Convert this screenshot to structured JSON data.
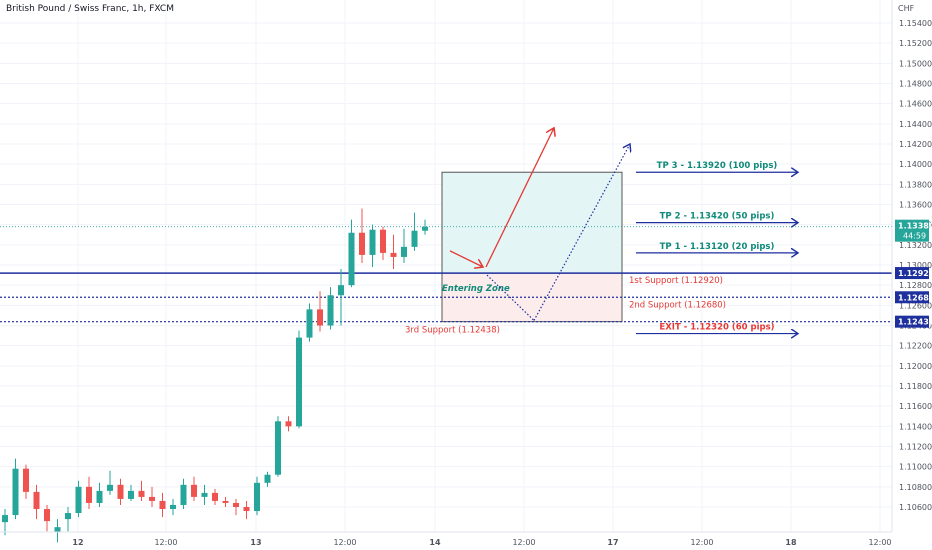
{
  "chart_data": {
    "type": "candlestick",
    "title": "British Pound / Swiss Franc, 1h, FXCM",
    "currency": "CHF",
    "ylim": [
      1.103,
      1.1555
    ],
    "y_ticks": [
      "1.15400",
      "1.15200",
      "1.15000",
      "1.14800",
      "1.14600",
      "1.14400",
      "1.14200",
      "1.14000",
      "1.13800",
      "1.13600",
      "1.13400",
      "1.13200",
      "1.13000",
      "1.12800",
      "1.12600",
      "1.12400",
      "1.12200",
      "1.12000",
      "1.11800",
      "1.11600",
      "1.11400",
      "1.11200",
      "1.11000",
      "1.10800",
      "1.10600"
    ],
    "x_ticks": [
      "12",
      "12:00",
      "13",
      "12:00",
      "14",
      "12:00",
      "17",
      "12:00",
      "18",
      "12:00"
    ],
    "grid": true,
    "candles": [
      {
        "o": 1.1045,
        "h": 1.1058,
        "l": 1.1032,
        "c": 1.1052
      },
      {
        "o": 1.1052,
        "h": 1.1108,
        "l": 1.1048,
        "c": 1.1098
      },
      {
        "o": 1.1098,
        "h": 1.1102,
        "l": 1.1068,
        "c": 1.1075
      },
      {
        "o": 1.1075,
        "h": 1.1082,
        "l": 1.1048,
        "c": 1.1058
      },
      {
        "o": 1.1058,
        "h": 1.1062,
        "l": 1.1036,
        "c": 1.1046
      },
      {
        "o": 1.1035,
        "h": 1.1048,
        "l": 1.1025,
        "c": 1.104
      },
      {
        "o": 1.1048,
        "h": 1.106,
        "l": 1.1036,
        "c": 1.1054
      },
      {
        "o": 1.1054,
        "h": 1.1086,
        "l": 1.105,
        "c": 1.108
      },
      {
        "o": 1.108,
        "h": 1.109,
        "l": 1.1058,
        "c": 1.1064
      },
      {
        "o": 1.1064,
        "h": 1.1084,
        "l": 1.106,
        "c": 1.1076
      },
      {
        "o": 1.1076,
        "h": 1.1096,
        "l": 1.1072,
        "c": 1.1082
      },
      {
        "o": 1.1082,
        "h": 1.1088,
        "l": 1.1062,
        "c": 1.1068
      },
      {
        "o": 1.1068,
        "h": 1.1082,
        "l": 1.1066,
        "c": 1.1076
      },
      {
        "o": 1.1076,
        "h": 1.1086,
        "l": 1.1066,
        "c": 1.107
      },
      {
        "o": 1.107,
        "h": 1.108,
        "l": 1.106,
        "c": 1.1066
      },
      {
        "o": 1.1066,
        "h": 1.1074,
        "l": 1.105,
        "c": 1.1058
      },
      {
        "o": 1.1058,
        "h": 1.1068,
        "l": 1.1052,
        "c": 1.1062
      },
      {
        "o": 1.1062,
        "h": 1.1088,
        "l": 1.1058,
        "c": 1.1082
      },
      {
        "o": 1.1082,
        "h": 1.109,
        "l": 1.1066,
        "c": 1.107
      },
      {
        "o": 1.107,
        "h": 1.1082,
        "l": 1.1062,
        "c": 1.1074
      },
      {
        "o": 1.1074,
        "h": 1.1078,
        "l": 1.1062,
        "c": 1.1066
      },
      {
        "o": 1.1066,
        "h": 1.107,
        "l": 1.106,
        "c": 1.1064
      },
      {
        "o": 1.1064,
        "h": 1.1068,
        "l": 1.1052,
        "c": 1.106
      },
      {
        "o": 1.106,
        "h": 1.1066,
        "l": 1.1048,
        "c": 1.1056
      },
      {
        "o": 1.1056,
        "h": 1.109,
        "l": 1.1052,
        "c": 1.1084
      },
      {
        "o": 1.1084,
        "h": 1.1095,
        "l": 1.108,
        "c": 1.1092
      },
      {
        "o": 1.1092,
        "h": 1.115,
        "l": 1.109,
        "c": 1.1145
      },
      {
        "o": 1.1145,
        "h": 1.115,
        "l": 1.1135,
        "c": 1.114
      },
      {
        "o": 1.114,
        "h": 1.1235,
        "l": 1.1138,
        "c": 1.1228
      },
      {
        "o": 1.1228,
        "h": 1.1262,
        "l": 1.1224,
        "c": 1.1256
      },
      {
        "o": 1.1256,
        "h": 1.1274,
        "l": 1.1234,
        "c": 1.124
      },
      {
        "o": 1.124,
        "h": 1.1278,
        "l": 1.1236,
        "c": 1.127
      },
      {
        "o": 1.127,
        "h": 1.1296,
        "l": 1.124,
        "c": 1.128
      },
      {
        "o": 1.128,
        "h": 1.1345,
        "l": 1.1278,
        "c": 1.1332
      },
      {
        "o": 1.1332,
        "h": 1.1356,
        "l": 1.1302,
        "c": 1.131
      },
      {
        "o": 1.131,
        "h": 1.134,
        "l": 1.1298,
        "c": 1.1335
      },
      {
        "o": 1.1335,
        "h": 1.1338,
        "l": 1.1305,
        "c": 1.1312
      },
      {
        "o": 1.1312,
        "h": 1.133,
        "l": 1.1296,
        "c": 1.1308
      },
      {
        "o": 1.1308,
        "h": 1.1336,
        "l": 1.1302,
        "c": 1.1318
      },
      {
        "o": 1.1318,
        "h": 1.1352,
        "l": 1.1314,
        "c": 1.1334
      },
      {
        "o": 1.1334,
        "h": 1.1345,
        "l": 1.133,
        "c": 1.1338
      }
    ],
    "levels": [
      {
        "price": 1.1292,
        "label": "1.12920",
        "style": "solid",
        "color": "#1e2f9e"
      },
      {
        "price": 1.1268,
        "label": "1.12680",
        "style": "dotted",
        "color": "#1e2f9e"
      },
      {
        "price": 1.12438,
        "label": "1.12438",
        "style": "dotted",
        "color": "#1e2f9e"
      }
    ],
    "current_price": {
      "price": 1.1338,
      "label": "1.13380",
      "countdown": "44:59",
      "color": "#26a69a"
    },
    "targets": [
      {
        "price": 1.1392,
        "text": "TP 3 - 1.13920 (100 pips)",
        "color": "#0f8a7a"
      },
      {
        "price": 1.1342,
        "text": "TP 2 - 1.13420 (50 pips)",
        "color": "#0f8a7a"
      },
      {
        "price": 1.1312,
        "text": "TP 1 - 1.13120 (20 pips)",
        "color": "#0f8a7a"
      },
      {
        "price": 1.1232,
        "text": "EXIT - 1.12320 (60 pips)",
        "color": "#e53935"
      }
    ],
    "supports": [
      {
        "price": 1.1292,
        "text": "1st Support (1.12920)",
        "color": "#e53935"
      },
      {
        "price": 1.1268,
        "text": "2nd Support (1.12680)",
        "color": "#e53935"
      },
      {
        "price": 1.12438,
        "text": "3rd Support (1.12438)",
        "color": "#e53935"
      }
    ],
    "zone": {
      "top": 1.1392,
      "mid": 1.1292,
      "bottom": 1.12438,
      "label": "Entering Zone"
    },
    "colors": {
      "up": "#26a69a",
      "down": "#ef5350",
      "arrow_blue": "#1e2f9e",
      "arrow_red": "#e53935",
      "zone_green": "#e3f5f5",
      "zone_red": "#fdecec"
    }
  }
}
